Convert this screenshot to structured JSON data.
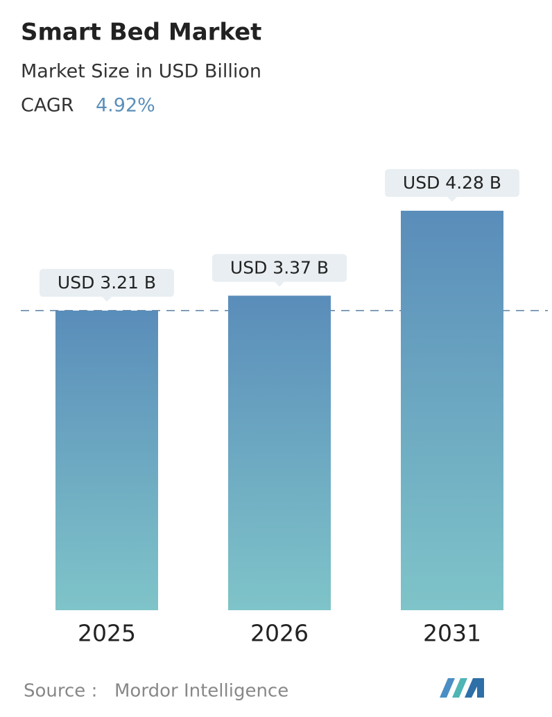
{
  "chart_data": {
    "type": "bar",
    "title": "Smart Bed Market",
    "subtitle": "Market Size in USD Billion",
    "cagr_label": "CAGR",
    "cagr_value": "4.92%",
    "categories": [
      "2025",
      "2026",
      "2031"
    ],
    "values": [
      3.21,
      3.37,
      4.28
    ],
    "value_labels": [
      "USD 3.21 B",
      "USD 3.37 B",
      "USD 4.28 B"
    ],
    "gradient": [
      "#5a8dba",
      "#7fc4c9"
    ],
    "ylim": [
      0,
      5
    ],
    "source_label": "Source :",
    "source": "Mordor Intelligence"
  }
}
